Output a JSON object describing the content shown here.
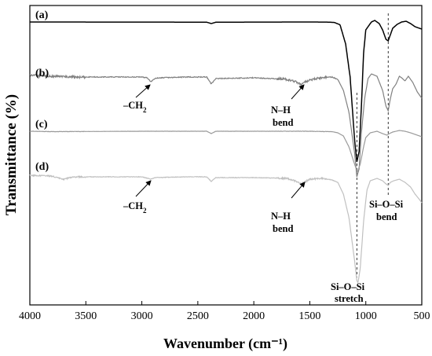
{
  "chart_data": {
    "type": "line",
    "title": "",
    "xlabel": "Wavenumber (cm⁻¹)",
    "ylabel": "Transmittance (%)",
    "xlim": [
      4000,
      500
    ],
    "x_reversed": true,
    "x_ticks": [
      4000,
      3500,
      3000,
      2500,
      2000,
      1500,
      1000,
      500
    ],
    "y_ticks_shown": false,
    "grid": false,
    "legend": "none",
    "series": [
      {
        "label": "(a)",
        "color": "#000000",
        "noise": 0.0,
        "points": [
          [
            4000,
            0.0
          ],
          [
            3000,
            0.1
          ],
          [
            2420,
            0.2
          ],
          [
            2380,
            2.0
          ],
          [
            2340,
            0.3
          ],
          [
            2000,
            0.1
          ],
          [
            1500,
            0.0
          ],
          [
            1350,
            0.1
          ],
          [
            1280,
            0.6
          ],
          [
            1230,
            3.5
          ],
          [
            1180,
            28.0
          ],
          [
            1140,
            70.0
          ],
          [
            1100,
            150.0
          ],
          [
            1080,
            178.0
          ],
          [
            1060,
            165.0
          ],
          [
            1040,
            110.0
          ],
          [
            1020,
            40.0
          ],
          [
            1000,
            10.0
          ],
          [
            950,
            0.0
          ],
          [
            920,
            -2.0
          ],
          [
            880,
            2.0
          ],
          [
            850,
            10.0
          ],
          [
            820,
            22.0
          ],
          [
            800,
            24.0
          ],
          [
            785,
            18.0
          ],
          [
            760,
            8.0
          ],
          [
            720,
            3.0
          ],
          [
            680,
            0.0
          ],
          [
            640,
            -1.0
          ],
          [
            600,
            2.0
          ],
          [
            560,
            6.0
          ],
          [
            520,
            8.0
          ],
          [
            500,
            9.0
          ]
        ]
      },
      {
        "label": "(b)",
        "color": "#808080",
        "noise": 1.8,
        "points": [
          [
            4000,
            1.0
          ],
          [
            3800,
            2.0
          ],
          [
            3600,
            3.0
          ],
          [
            3300,
            3.0
          ],
          [
            3000,
            3.0
          ],
          [
            2950,
            4.0
          ],
          [
            2920,
            9.0
          ],
          [
            2880,
            5.0
          ],
          [
            2850,
            4.0
          ],
          [
            2600,
            3.0
          ],
          [
            2420,
            3.0
          ],
          [
            2380,
            12.0
          ],
          [
            2340,
            5.0
          ],
          [
            2000,
            4.0
          ],
          [
            1700,
            6.0
          ],
          [
            1620,
            9.0
          ],
          [
            1580,
            13.0
          ],
          [
            1550,
            10.0
          ],
          [
            1500,
            7.0
          ],
          [
            1400,
            4.0
          ],
          [
            1300,
            3.0
          ],
          [
            1250,
            6.0
          ],
          [
            1200,
            20.0
          ],
          [
            1150,
            48.0
          ],
          [
            1100,
            100.0
          ],
          [
            1080,
            130.0
          ],
          [
            1060,
            120.0
          ],
          [
            1040,
            75.0
          ],
          [
            1010,
            30.0
          ],
          [
            980,
            5.0
          ],
          [
            950,
            -1.0
          ],
          [
            900,
            2.0
          ],
          [
            850,
            20.0
          ],
          [
            820,
            40.0
          ],
          [
            800,
            46.0
          ],
          [
            780,
            30.0
          ],
          [
            760,
            18.0
          ],
          [
            730,
            12.0
          ],
          [
            700,
            2.0
          ],
          [
            680,
            4.0
          ],
          [
            650,
            8.0
          ],
          [
            620,
            2.0
          ],
          [
            580,
            10.0
          ],
          [
            540,
            22.0
          ],
          [
            500,
            30.0
          ]
        ]
      },
      {
        "label": "(c)",
        "color": "#9a9a9a",
        "noise": 0.3,
        "points": [
          [
            4000,
            0.0
          ],
          [
            3800,
            0.5
          ],
          [
            3000,
            0.0
          ],
          [
            2420,
            0.0
          ],
          [
            2380,
            3.0
          ],
          [
            2340,
            0.0
          ],
          [
            1500,
            0.0
          ],
          [
            1300,
            0.5
          ],
          [
            1250,
            2.0
          ],
          [
            1200,
            6.0
          ],
          [
            1150,
            20.0
          ],
          [
            1100,
            42.0
          ],
          [
            1075,
            52.0
          ],
          [
            1050,
            42.0
          ],
          [
            1020,
            20.0
          ],
          [
            1000,
            8.0
          ],
          [
            960,
            2.0
          ],
          [
            900,
            0.0
          ],
          [
            850,
            3.0
          ],
          [
            810,
            5.0
          ],
          [
            790,
            3.0
          ],
          [
            760,
            1.0
          ],
          [
            700,
            -1.0
          ],
          [
            650,
            0.0
          ],
          [
            600,
            2.0
          ],
          [
            560,
            4.0
          ],
          [
            520,
            6.0
          ],
          [
            500,
            7.0
          ]
        ]
      },
      {
        "label": "(d)",
        "color": "#c0c0c0",
        "noise": 1.2,
        "points": [
          [
            4000,
            1.0
          ],
          [
            3800,
            2.0
          ],
          [
            3700,
            6.0
          ],
          [
            3600,
            3.0
          ],
          [
            3300,
            3.0
          ],
          [
            3000,
            3.0
          ],
          [
            2920,
            6.0
          ],
          [
            2880,
            4.0
          ],
          [
            2600,
            3.0
          ],
          [
            2420,
            3.0
          ],
          [
            2380,
            9.0
          ],
          [
            2340,
            4.0
          ],
          [
            2000,
            4.0
          ],
          [
            1700,
            5.0
          ],
          [
            1620,
            9.0
          ],
          [
            1580,
            12.0
          ],
          [
            1550,
            10.0
          ],
          [
            1500,
            6.0
          ],
          [
            1400,
            5.0
          ],
          [
            1300,
            7.0
          ],
          [
            1250,
            10.0
          ],
          [
            1200,
            25.0
          ],
          [
            1150,
            55.0
          ],
          [
            1100,
            110.0
          ],
          [
            1080,
            135.0
          ],
          [
            1070,
            138.0
          ],
          [
            1050,
            120.0
          ],
          [
            1020,
            60.0
          ],
          [
            990,
            20.0
          ],
          [
            960,
            8.0
          ],
          [
            900,
            5.0
          ],
          [
            850,
            8.0
          ],
          [
            820,
            12.0
          ],
          [
            800,
            14.0
          ],
          [
            780,
            10.0
          ],
          [
            750,
            8.0
          ],
          [
            700,
            6.0
          ],
          [
            650,
            10.0
          ],
          [
            600,
            16.0
          ],
          [
            560,
            25.0
          ],
          [
            520,
            32.0
          ],
          [
            500,
            36.0
          ]
        ]
      }
    ],
    "annotations": {
      "ch2_b": "–CH",
      "ch2_b_sub": "2",
      "nh_b_line1": "N–H",
      "nh_b_line2": "bend",
      "ch2_d": "–CH",
      "ch2_d_sub": "2",
      "nh_d_line1": "N–H",
      "nh_d_line2": "bend",
      "sios_bend_line1": "Si–O–Si",
      "sios_bend_line2": "bend",
      "sios_stretch_line1": "Si–O–Si",
      "sios_stretch_line2": "stretch"
    },
    "reference_lines_x": [
      1080,
      800
    ]
  }
}
